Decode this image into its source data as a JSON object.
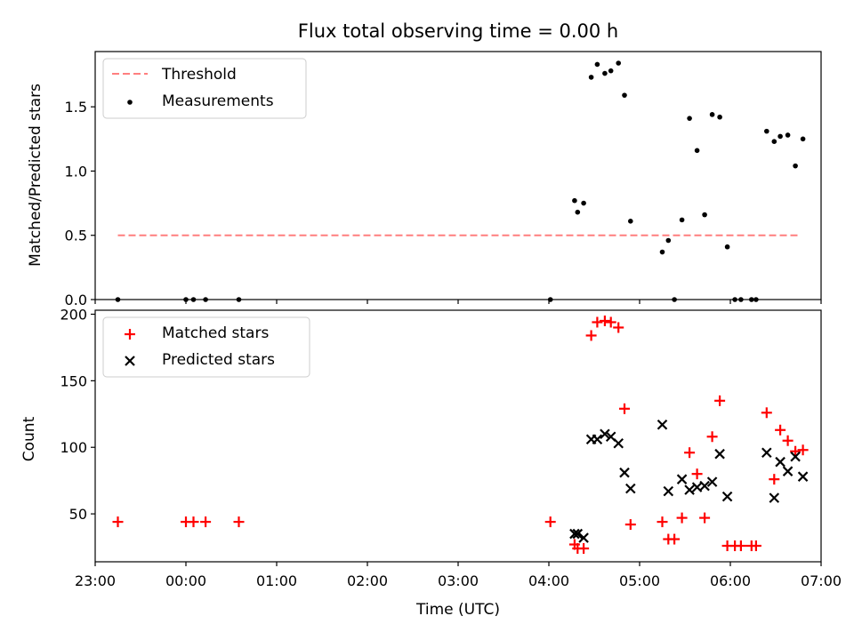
{
  "title": "Flux total observing time = 0.00 h",
  "chart_data": [
    {
      "type": "scatter",
      "ylabel": "Matched/Predicted stars",
      "ylim": [
        0,
        1.93
      ],
      "yticks": [
        0.0,
        0.5,
        1.0,
        1.5
      ],
      "ytick_labels": [
        "0.0",
        "0.5",
        "1.0",
        "1.5"
      ],
      "xlim": [
        "23:00",
        "07:00"
      ],
      "legend_loc": "upper left",
      "series": [
        {
          "name": "Threshold",
          "kind": "dashed-line",
          "color": "#ff7f7f",
          "x": [
            "23:15",
            "06:46"
          ],
          "y": [
            0.5,
            0.5
          ]
        },
        {
          "name": "Measurements",
          "kind": "dot",
          "color": "#000000",
          "points": [
            [
              "23:15",
              0.0
            ],
            [
              "00:00",
              0.0
            ],
            [
              "00:05",
              0.0
            ],
            [
              "00:13",
              0.0
            ],
            [
              "00:35",
              0.0
            ],
            [
              "04:01",
              0.0
            ],
            [
              "04:17",
              0.77
            ],
            [
              "04:19",
              0.68
            ],
            [
              "04:23",
              0.75
            ],
            [
              "04:28",
              1.73
            ],
            [
              "04:32",
              1.83
            ],
            [
              "04:37",
              1.76
            ],
            [
              "04:41",
              1.78
            ],
            [
              "04:46",
              1.84
            ],
            [
              "04:50",
              1.59
            ],
            [
              "04:54",
              0.61
            ],
            [
              "05:15",
              0.37
            ],
            [
              "05:19",
              0.46
            ],
            [
              "05:23",
              0.0
            ],
            [
              "05:28",
              0.62
            ],
            [
              "05:33",
              1.41
            ],
            [
              "05:38",
              1.16
            ],
            [
              "05:43",
              0.66
            ],
            [
              "05:48",
              1.44
            ],
            [
              "05:53",
              1.42
            ],
            [
              "05:58",
              0.41
            ],
            [
              "06:03",
              0.0
            ],
            [
              "06:07",
              0.0
            ],
            [
              "06:14",
              0.0
            ],
            [
              "06:17",
              0.0
            ],
            [
              "06:24",
              1.31
            ],
            [
              "06:29",
              1.23
            ],
            [
              "06:33",
              1.27
            ],
            [
              "06:38",
              1.28
            ],
            [
              "06:43",
              1.04
            ],
            [
              "06:48",
              1.25
            ]
          ]
        }
      ]
    },
    {
      "type": "scatter",
      "xlabel": "Time (UTC)",
      "ylabel": "Count",
      "ylim": [
        14,
        203
      ],
      "yticks": [
        50,
        100,
        150,
        200
      ],
      "ytick_labels": [
        "50",
        "100",
        "150",
        "200"
      ],
      "xlim": [
        "23:00",
        "07:00"
      ],
      "xtick_labels": [
        "23:00",
        "00:00",
        "01:00",
        "02:00",
        "03:00",
        "04:00",
        "05:00",
        "06:00",
        "07:00"
      ],
      "legend_loc": "upper left",
      "series": [
        {
          "name": "Matched stars",
          "marker": "+",
          "color": "#ff0000",
          "points": [
            [
              "23:15",
              44
            ],
            [
              "00:00",
              44
            ],
            [
              "00:05",
              44
            ],
            [
              "00:13",
              44
            ],
            [
              "00:35",
              44
            ],
            [
              "04:01",
              44
            ],
            [
              "04:17",
              27
            ],
            [
              "04:19",
              24
            ],
            [
              "04:23",
              24
            ],
            [
              "04:28",
              184
            ],
            [
              "04:32",
              194
            ],
            [
              "04:37",
              195
            ],
            [
              "04:41",
              194
            ],
            [
              "04:46",
              190
            ],
            [
              "04:50",
              129
            ],
            [
              "04:54",
              42
            ],
            [
              "05:15",
              44
            ],
            [
              "05:19",
              31
            ],
            [
              "05:23",
              31
            ],
            [
              "05:28",
              47
            ],
            [
              "05:33",
              96
            ],
            [
              "05:38",
              80
            ],
            [
              "05:43",
              47
            ],
            [
              "05:48",
              108
            ],
            [
              "05:53",
              135
            ],
            [
              "05:58",
              26
            ],
            [
              "06:03",
              26
            ],
            [
              "06:07",
              26
            ],
            [
              "06:14",
              26
            ],
            [
              "06:17",
              26
            ],
            [
              "06:24",
              126
            ],
            [
              "06:29",
              76
            ],
            [
              "06:33",
              113
            ],
            [
              "06:38",
              105
            ],
            [
              "06:43",
              97
            ],
            [
              "06:48",
              98
            ]
          ]
        },
        {
          "name": "Predicted stars",
          "marker": "x",
          "color": "#000000",
          "points": [
            [
              "04:17",
              35
            ],
            [
              "04:19",
              35
            ],
            [
              "04:23",
              32
            ],
            [
              "04:28",
              106
            ],
            [
              "04:32",
              106
            ],
            [
              "04:37",
              110
            ],
            [
              "04:41",
              108
            ],
            [
              "04:46",
              103
            ],
            [
              "04:50",
              81
            ],
            [
              "04:54",
              69
            ],
            [
              "05:15",
              117
            ],
            [
              "05:19",
              67
            ],
            [
              "05:28",
              76
            ],
            [
              "05:33",
              68
            ],
            [
              "05:38",
              70
            ],
            [
              "05:43",
              71
            ],
            [
              "05:48",
              74
            ],
            [
              "05:53",
              95
            ],
            [
              "05:58",
              63
            ],
            [
              "06:24",
              96
            ],
            [
              "06:29",
              62
            ],
            [
              "06:33",
              89
            ],
            [
              "06:38",
              82
            ],
            [
              "06:43",
              93
            ],
            [
              "06:48",
              78
            ]
          ]
        }
      ]
    }
  ]
}
